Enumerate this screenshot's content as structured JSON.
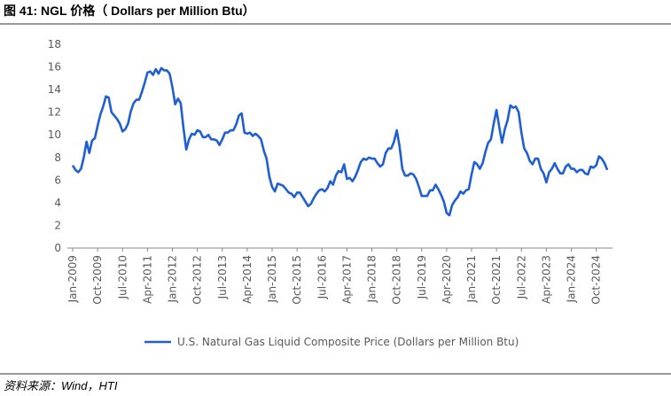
{
  "chart_data": {
    "type": "line",
    "title": "图 41: NGL 价格（ Dollars per Million Btu）",
    "source": "资料来源：Wind，HTI",
    "categories": [
      "Jan-2009",
      null,
      null,
      null,
      null,
      null,
      null,
      null,
      null,
      "Oct-2009",
      null,
      null,
      null,
      null,
      null,
      null,
      null,
      null,
      "Jul-2010",
      null,
      null,
      null,
      null,
      null,
      null,
      null,
      null,
      "Apr-2011",
      null,
      null,
      null,
      null,
      null,
      null,
      null,
      null,
      "Jan-2012",
      null,
      null,
      null,
      null,
      null,
      null,
      null,
      null,
      "Oct-2012",
      null,
      null,
      null,
      null,
      null,
      null,
      null,
      null,
      "Jul-2013",
      null,
      null,
      null,
      null,
      null,
      null,
      null,
      null,
      "Apr-2014",
      null,
      null,
      null,
      null,
      null,
      null,
      null,
      null,
      "Jan-2015",
      null,
      null,
      null,
      null,
      null,
      null,
      null,
      null,
      "Oct-2015",
      null,
      null,
      null,
      null,
      null,
      null,
      null,
      null,
      "Jul-2016",
      null,
      null,
      null,
      null,
      null,
      null,
      null,
      null,
      "Apr-2017",
      null,
      null,
      null,
      null,
      null,
      null,
      null,
      null,
      "Jan-2018",
      null,
      null,
      null,
      null,
      null,
      null,
      null,
      null,
      "Oct-2018",
      null,
      null,
      null,
      null,
      null,
      null,
      null,
      null,
      "Jul-2019",
      null,
      null,
      null,
      null,
      null,
      null,
      null,
      null,
      "Apr-2020",
      null,
      null,
      null,
      null,
      null,
      null,
      null,
      null,
      "Jan-2021",
      null,
      null,
      null,
      null,
      null,
      null,
      null,
      null,
      "Oct-2021",
      null,
      null,
      null,
      null,
      null,
      null,
      null,
      null,
      "Jul-2022",
      null,
      null,
      null,
      null,
      null,
      null,
      null,
      null,
      "Apr-2023",
      null,
      null,
      null,
      null,
      null,
      null,
      null,
      null,
      "Jan-2024",
      null,
      null,
      null,
      null,
      null,
      null,
      null,
      null,
      "Oct-2024",
      null,
      null,
      null,
      null
    ],
    "series": [
      {
        "name": "U.S. Natural Gas Liquid Composite Price (Dollars per Million Btu)",
        "color": "#1f5fd1",
        "values": [
          7.3,
          6.9,
          6.7,
          7.0,
          8.0,
          9.4,
          8.4,
          9.5,
          9.7,
          10.8,
          11.8,
          12.5,
          13.4,
          13.3,
          12.0,
          11.7,
          11.4,
          11.0,
          10.3,
          10.5,
          11.0,
          12.1,
          12.8,
          13.1,
          13.1,
          13.8,
          14.6,
          15.5,
          15.6,
          15.3,
          15.8,
          15.4,
          15.9,
          15.7,
          15.7,
          15.4,
          14.2,
          12.7,
          13.2,
          12.8,
          10.6,
          8.7,
          9.6,
          10.1,
          10.0,
          10.4,
          10.3,
          9.8,
          9.8,
          10.0,
          9.6,
          9.6,
          9.5,
          9.1,
          9.6,
          10.2,
          10.2,
          10.4,
          10.4,
          10.9,
          11.7,
          11.9,
          10.2,
          10.1,
          10.2,
          9.9,
          10.1,
          9.9,
          9.6,
          8.6,
          7.9,
          6.3,
          5.4,
          5.0,
          5.7,
          5.6,
          5.5,
          5.2,
          4.9,
          4.8,
          4.5,
          4.9,
          4.9,
          4.5,
          4.1,
          3.7,
          3.9,
          4.4,
          4.8,
          5.1,
          5.2,
          5.0,
          5.3,
          5.9,
          5.6,
          6.4,
          6.8,
          6.7,
          7.4,
          6.1,
          6.2,
          5.9,
          6.3,
          6.9,
          7.6,
          7.9,
          7.8,
          8.0,
          7.9,
          7.9,
          7.5,
          7.2,
          7.4,
          8.4,
          8.8,
          8.8,
          9.4,
          10.4,
          9.0,
          7.0,
          6.4,
          6.4,
          6.6,
          6.5,
          6.1,
          5.4,
          4.6,
          4.6,
          4.6,
          5.1,
          5.1,
          5.6,
          5.2,
          4.7,
          4.1,
          3.1,
          2.9,
          3.8,
          4.2,
          4.5,
          5.0,
          4.8,
          5.1,
          5.2,
          6.5,
          7.6,
          7.4,
          7.0,
          7.5,
          8.5,
          9.3,
          9.6,
          11.0,
          12.2,
          10.7,
          9.3,
          10.5,
          11.3,
          12.6,
          12.4,
          12.5,
          12.0,
          10.2,
          8.8,
          8.4,
          7.7,
          7.4,
          7.9,
          7.9,
          7.0,
          6.6,
          5.8,
          6.7,
          7.0,
          7.5,
          7.0,
          6.6,
          6.6,
          7.2,
          7.4,
          7.0,
          7.0,
          6.7,
          6.9,
          6.9,
          6.6,
          6.5,
          7.2,
          7.1,
          7.3,
          8.1,
          7.9,
          7.5,
          6.9
        ]
      }
    ],
    "ylim": [
      0,
      18
    ],
    "yticks": [
      0,
      2,
      4,
      6,
      8,
      10,
      12,
      14,
      16,
      18
    ],
    "grid": false,
    "legend": "bottom"
  }
}
